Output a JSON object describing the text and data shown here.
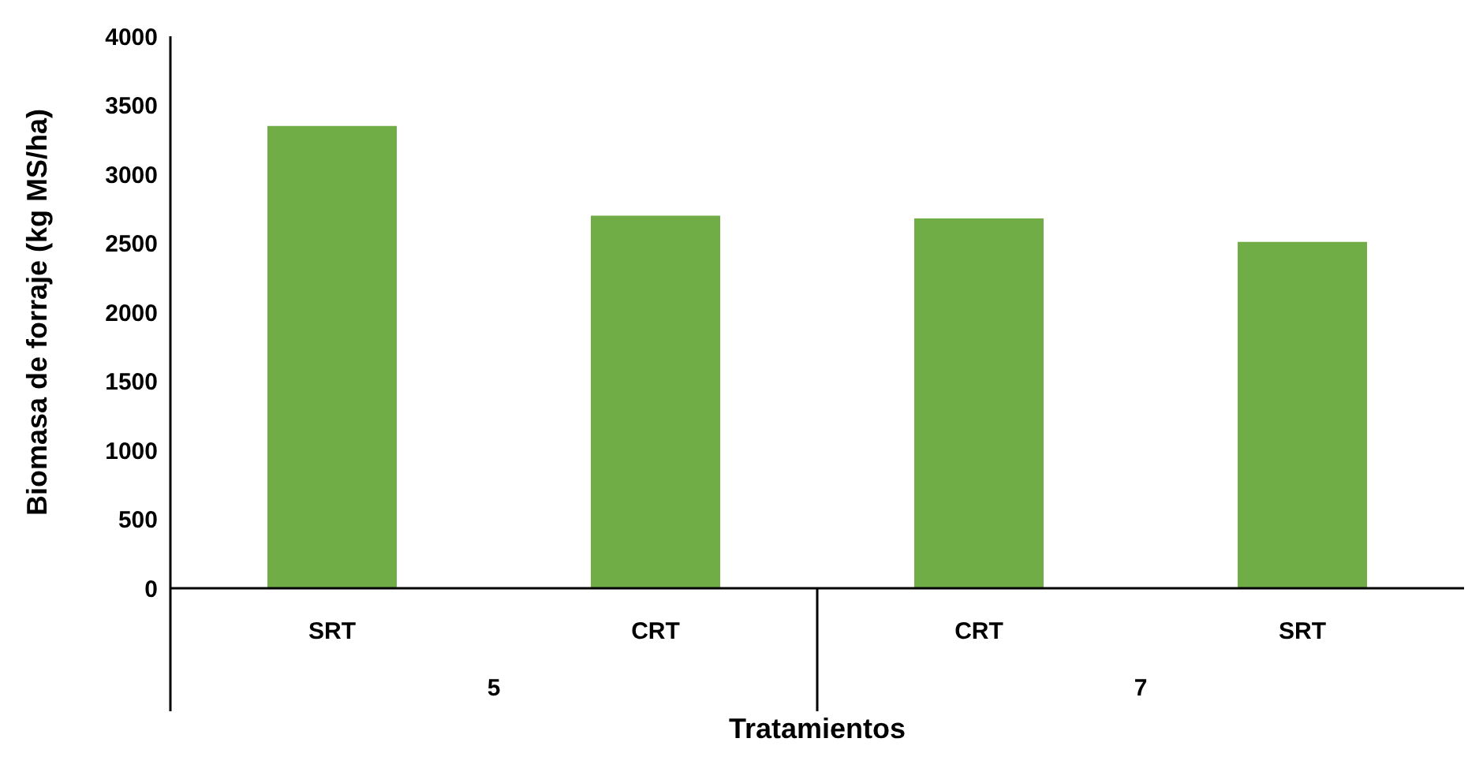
{
  "chart_data": {
    "type": "bar",
    "xlabel": "Tratamientos",
    "ylabel": "Biomasa de forraje (kg MS/ha)",
    "categories": [
      "SRT",
      "CRT",
      "CRT",
      "SRT"
    ],
    "values": [
      3350,
      2700,
      2680,
      2510
    ],
    "color": "#70ad47",
    "ylim": [
      0,
      4000
    ],
    "yticks": [
      0,
      500,
      1000,
      1500,
      2000,
      2500,
      3000,
      3500,
      4000
    ],
    "grid": false,
    "legend": false,
    "annotations": [
      "5",
      "7"
    ]
  }
}
